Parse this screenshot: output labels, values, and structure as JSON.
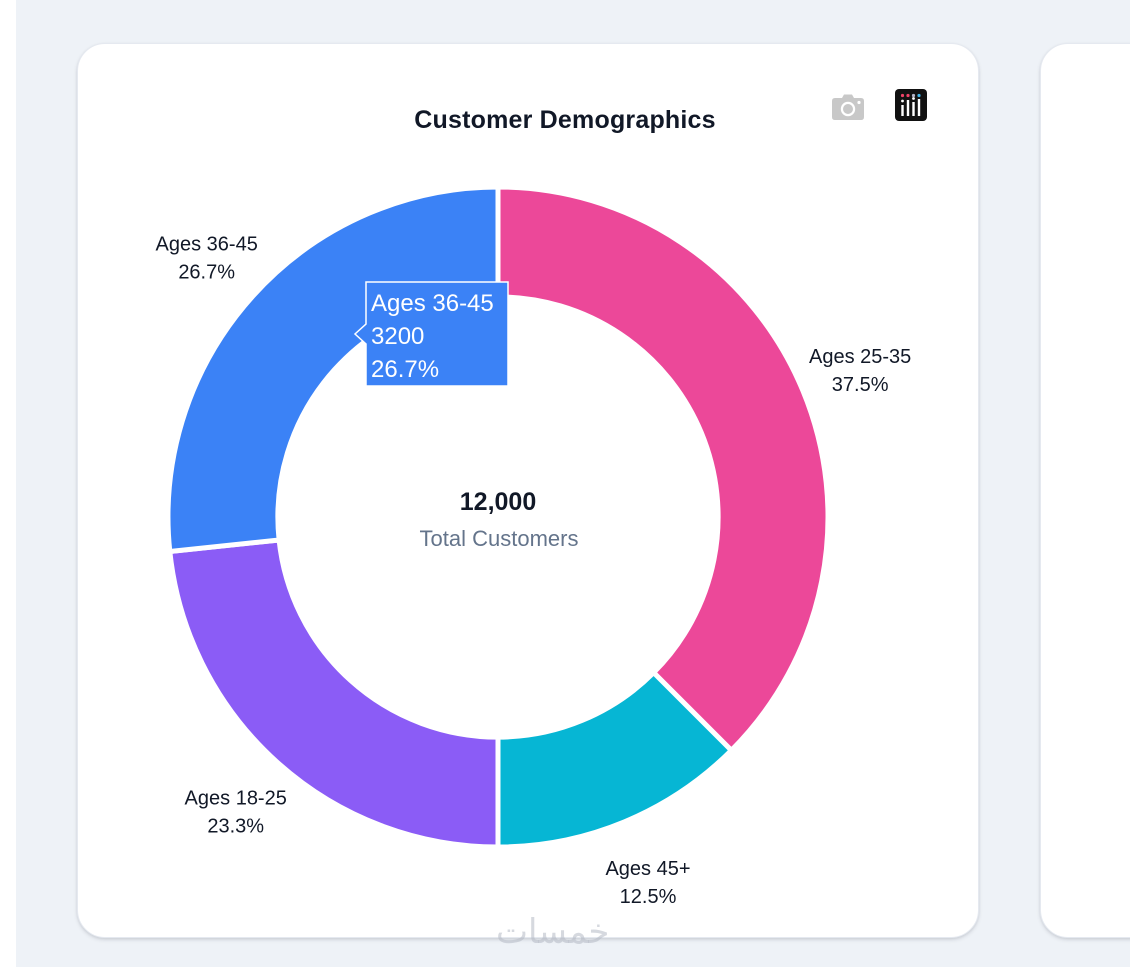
{
  "card": {
    "title": "Customer Demographics",
    "toolbar": [
      {
        "name": "download-image",
        "icon": "camera-icon"
      },
      {
        "name": "plotly-logo",
        "icon": "plotly-logo-icon"
      }
    ]
  },
  "colors": {
    "ages_25_35": "#EC4899",
    "ages_45_plus": "#06B6D4",
    "ages_18_25": "#8B5CF6",
    "ages_36_45": "#3B82F6",
    "page_background": "#EEF2F7"
  },
  "chart_data": {
    "type": "pie",
    "subtype": "donut",
    "title": "Customer Demographics",
    "direction": "clockwise",
    "start": "top",
    "categories": [
      "Ages 25-35",
      "Ages 45+",
      "Ages 18-25",
      "Ages 36-45"
    ],
    "values": [
      4500,
      1500,
      2800,
      3200
    ],
    "percent_labels": [
      "37.5%",
      "12.5%",
      "23.3%",
      "26.7%"
    ],
    "colors": [
      "#EC4899",
      "#06B6D4",
      "#8B5CF6",
      "#3B82F6"
    ],
    "hole": 0.667,
    "center_annotation": {
      "value": "12,000",
      "label": "Total Customers"
    },
    "hover": {
      "category": "Ages 36-45",
      "value": "3200",
      "percent": "26.7%"
    },
    "legend": "none"
  },
  "watermark": "خمسات"
}
